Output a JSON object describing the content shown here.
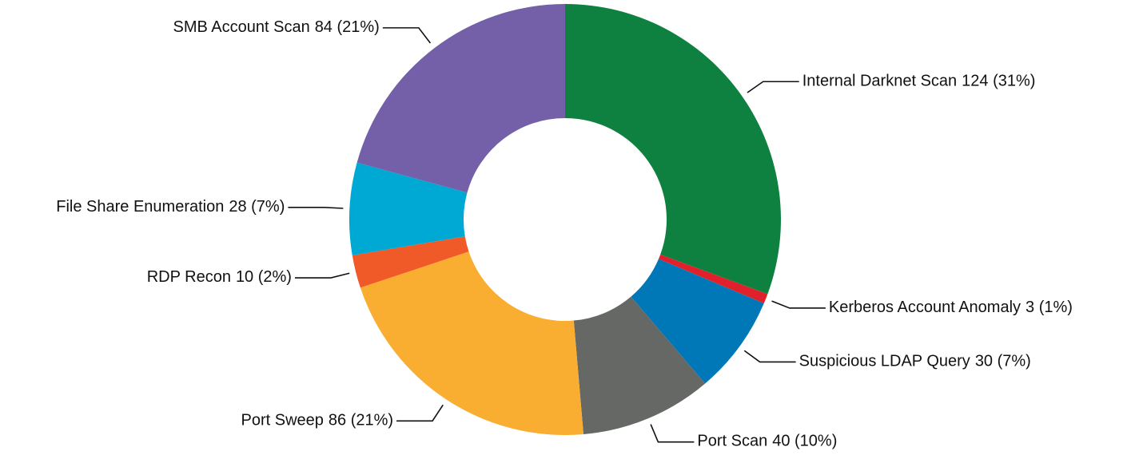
{
  "chart_data": {
    "type": "donut",
    "categories": [
      "Internal Darknet Scan",
      "Kerberos Account Anomaly",
      "Suspicious LDAP Query",
      "Port Scan",
      "Port Sweep",
      "RDP Recon",
      "File Share Enumeration",
      "SMB Account Scan"
    ],
    "values": [
      124,
      3,
      30,
      40,
      86,
      10,
      28,
      84
    ],
    "value_labels": [
      "124 (31%)",
      "3 (1%)",
      "30 (7%)",
      "40 (10%)",
      "86 (21%)",
      "10 (2%)",
      "28 (7%)",
      "84 (21%)"
    ],
    "colors": [
      "#0e8040",
      "#e0202a",
      "#0077b6",
      "#666866",
      "#f9ad31",
      "#f05a28",
      "#00a8d4",
      "#7460a8"
    ]
  }
}
